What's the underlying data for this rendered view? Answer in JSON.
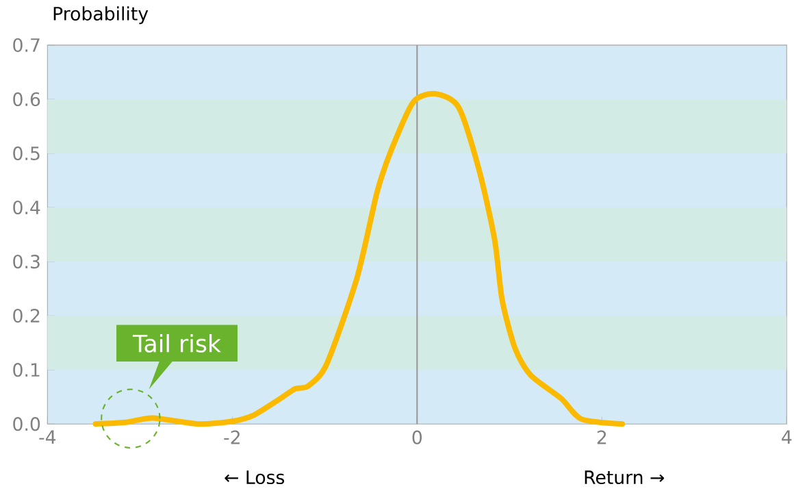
{
  "chart_data": {
    "type": "line",
    "ylabel": "Probability",
    "x": [
      -3.48,
      -3.15,
      -2.86,
      -2.37,
      -2.0,
      -1.76,
      -1.48,
      -1.32,
      -1.18,
      -0.98,
      -0.65,
      -0.43,
      -0.27,
      -0.04,
      0.2,
      0.45,
      0.67,
      0.84,
      0.92,
      1.06,
      1.23,
      1.56,
      1.78,
      2.22
    ],
    "series": [
      {
        "color": "#fbb900",
        "values": [
          0.0,
          0.003,
          0.011,
          0.0,
          0.005,
          0.017,
          0.047,
          0.065,
          0.07,
          0.11,
          0.27,
          0.43,
          0.51,
          0.595,
          0.61,
          0.585,
          0.47,
          0.34,
          0.23,
          0.14,
          0.09,
          0.047,
          0.009,
          0.0
        ]
      }
    ],
    "xlim": [
      -4,
      4
    ],
    "ylim": [
      0,
      0.7
    ],
    "xticks": [
      -4,
      -2,
      0,
      2,
      4
    ],
    "yticks": [
      {
        "value": 0,
        "label": "0.0"
      },
      0.1,
      0.2,
      0.3,
      0.4,
      0.5,
      0.6,
      0.7
    ],
    "bands": [
      {
        "axis": "y",
        "from": 0.1,
        "to": 0.2,
        "color": "#d2ebe4"
      },
      {
        "axis": "y",
        "from": 0.3,
        "to": 0.4,
        "color": "#d2ebe4"
      },
      {
        "axis": "y",
        "from": 0.5,
        "to": 0.6,
        "color": "#d2ebe4"
      }
    ],
    "ref_lines": [
      {
        "axis": "x",
        "value": 0,
        "color": "#999999"
      }
    ],
    "annotations": [
      {
        "text": "Tail risk",
        "x": -3.1,
        "y": 0.01
      },
      "← Loss",
      "Return →"
    ]
  }
}
